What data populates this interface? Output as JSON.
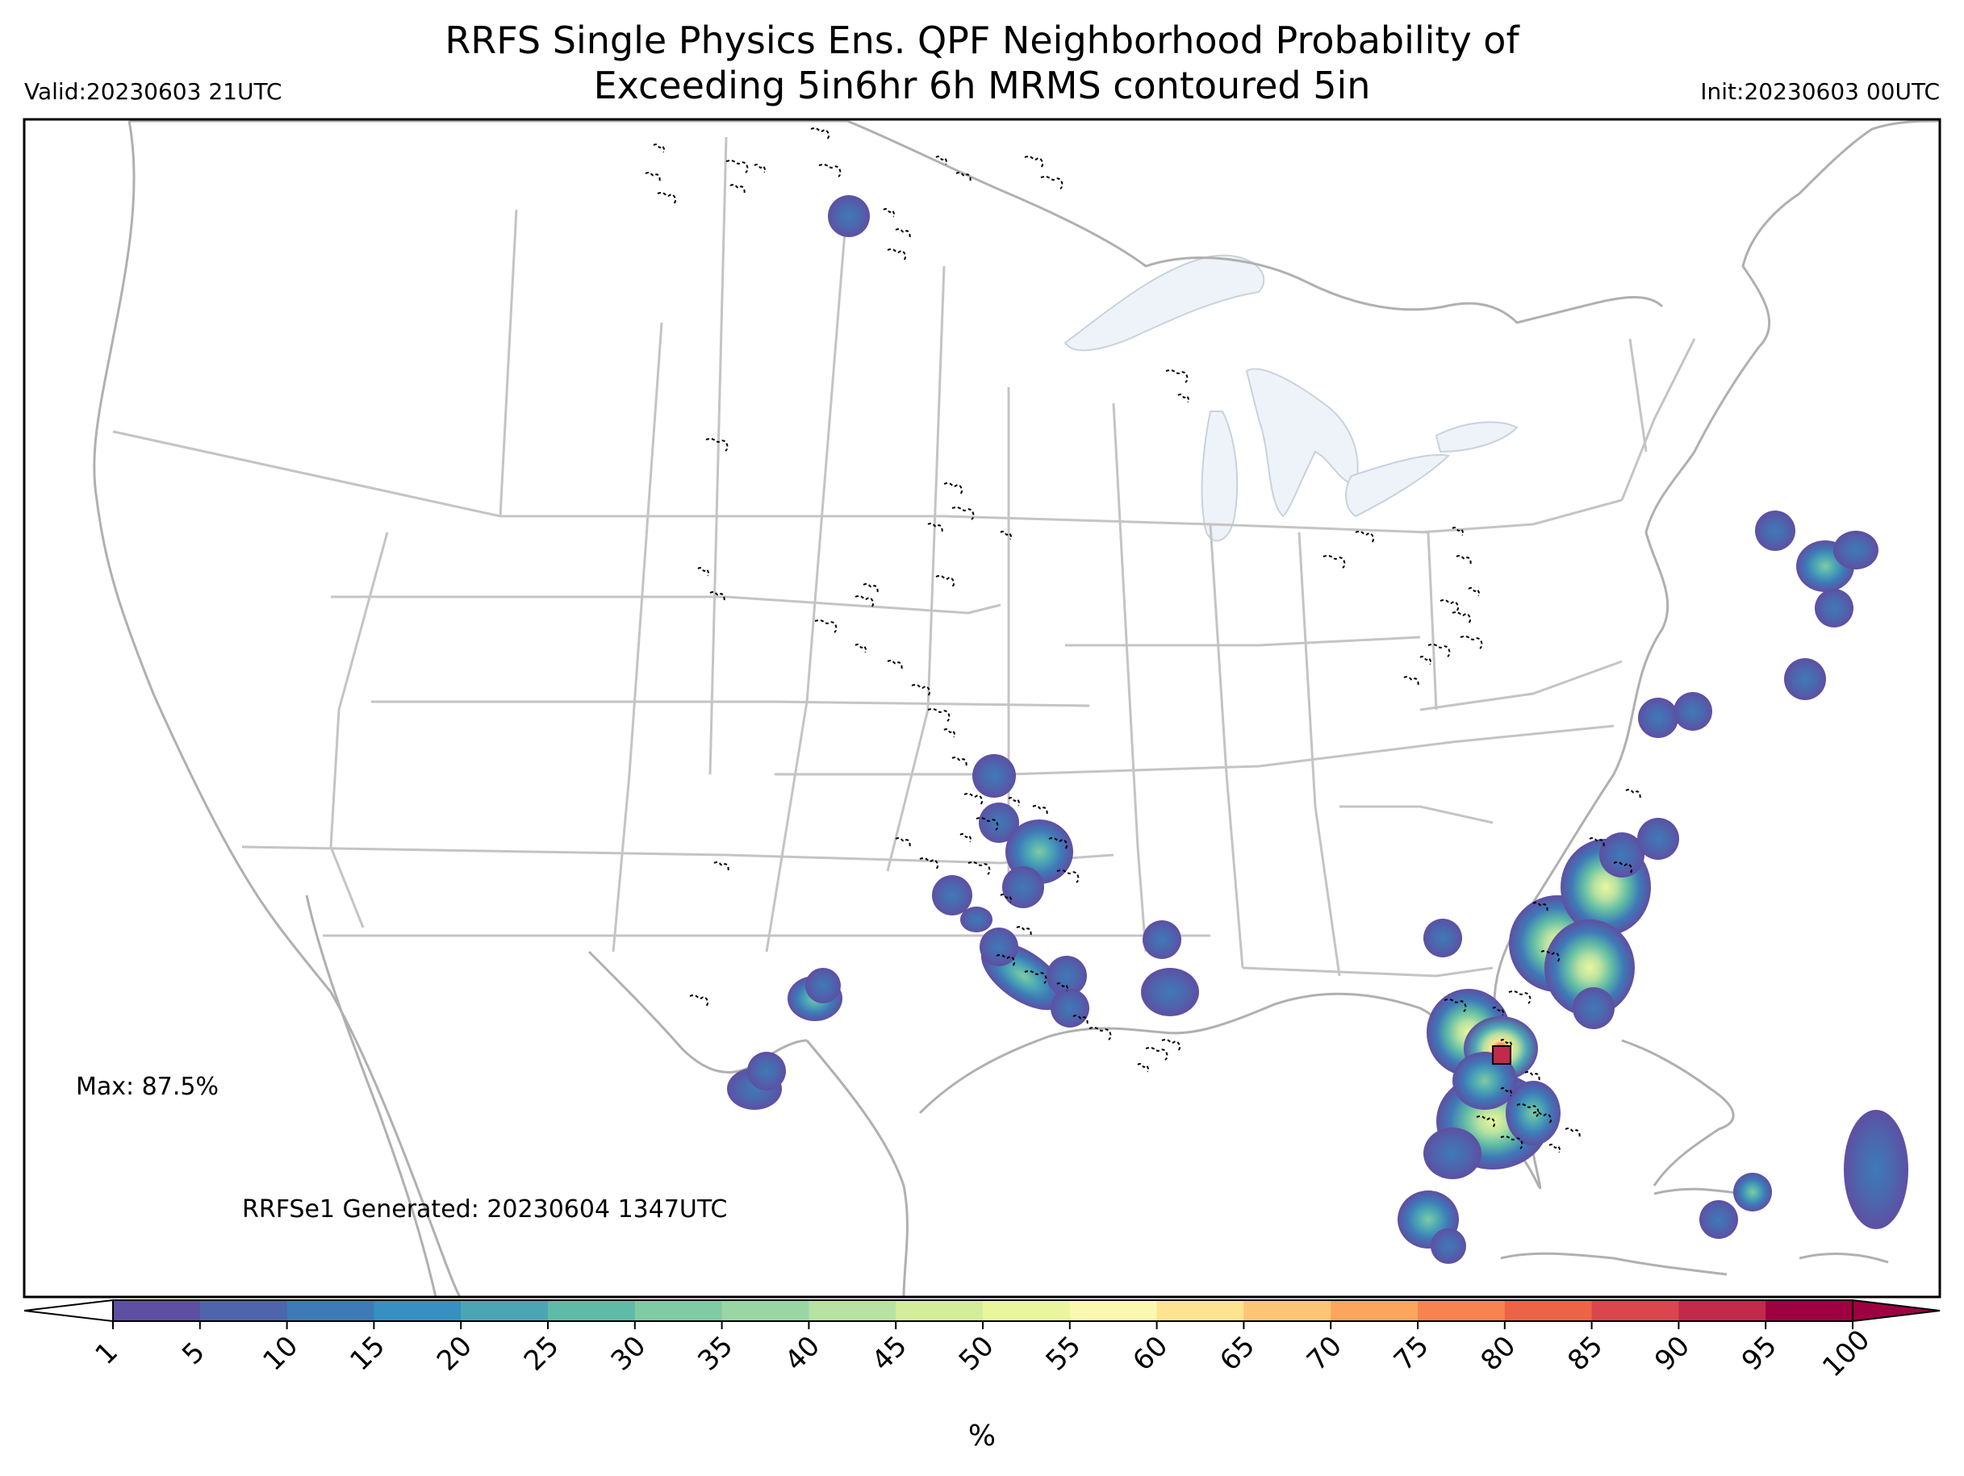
{
  "header": {
    "title_line1": "RRFS Single Physics Ens. QPF Neighborhood Probability of",
    "title_line2": "Exceeding 5in6hr 6h MRMS contoured 5in",
    "valid": "Valid:20230603 21UTC",
    "init": "Init:20230603 00UTC"
  },
  "annotations": {
    "max": "Max: 87.5%",
    "generated": "RRFSe1 Generated: 20230604 1347UTC"
  },
  "colorbar": {
    "unit": "%",
    "ticks": [
      "1",
      "5",
      "10",
      "15",
      "20",
      "25",
      "30",
      "35",
      "40",
      "45",
      "50",
      "55",
      "60",
      "65",
      "70",
      "75",
      "80",
      "85",
      "90",
      "95",
      "100"
    ],
    "colors": [
      "#5e4fa2",
      "#4e64ad",
      "#3e7ab8",
      "#3690c0",
      "#4ba6b4",
      "#5fbba6",
      "#7fcba4",
      "#99d6a4",
      "#b7e2a1",
      "#d4ed9b",
      "#eaf69b",
      "#fbf8b0",
      "#fee390",
      "#fdc675",
      "#fca55d",
      "#f7834e",
      "#ec6445",
      "#d9464e",
      "#c12a4b",
      "#9e0142"
    ],
    "under_color": "#ffffff",
    "over_color": "#9e0142"
  },
  "map": {
    "region": "CONUS",
    "outline_color": "#b4b4b4",
    "lake_color": "#eef3f9",
    "mrms_contour_style": "dashed black"
  }
}
